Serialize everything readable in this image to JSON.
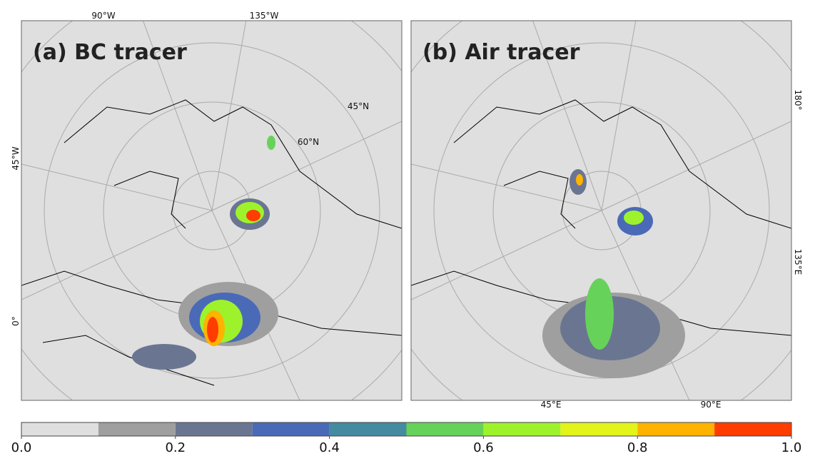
{
  "panels": [
    {
      "title": "(a) BC tracer"
    },
    {
      "title": "(b) Air tracer"
    }
  ],
  "map_labels": {
    "a": [
      "90°W",
      "135°W",
      "45°N",
      "60°N",
      "45°W",
      "0°"
    ],
    "b": [
      "180°",
      "135°E",
      "45°E",
      "90°E"
    ]
  },
  "colorbar": {
    "bounds": [
      0,
      0.1,
      0.2,
      0.3,
      0.4,
      0.5,
      0.6,
      0.7,
      0.8,
      0.9,
      1.0
    ],
    "colors": [
      "#dfdfdf",
      "#9f9f9f",
      "#6a7691",
      "#4a6ab8",
      "#448ba0",
      "#66d25a",
      "#9ef22c",
      "#e2f41a",
      "#fdb300",
      "#ff3d00"
    ],
    "ticks": [
      {
        "value": 0,
        "label": "0.0"
      },
      {
        "value": 0.2,
        "label": "0.2"
      },
      {
        "value": 0.4,
        "label": "0.4"
      },
      {
        "value": 0.6,
        "label": "0.6"
      },
      {
        "value": 0.8,
        "label": "0.8"
      },
      {
        "value": 1.0,
        "label": "1.0"
      }
    ]
  }
}
